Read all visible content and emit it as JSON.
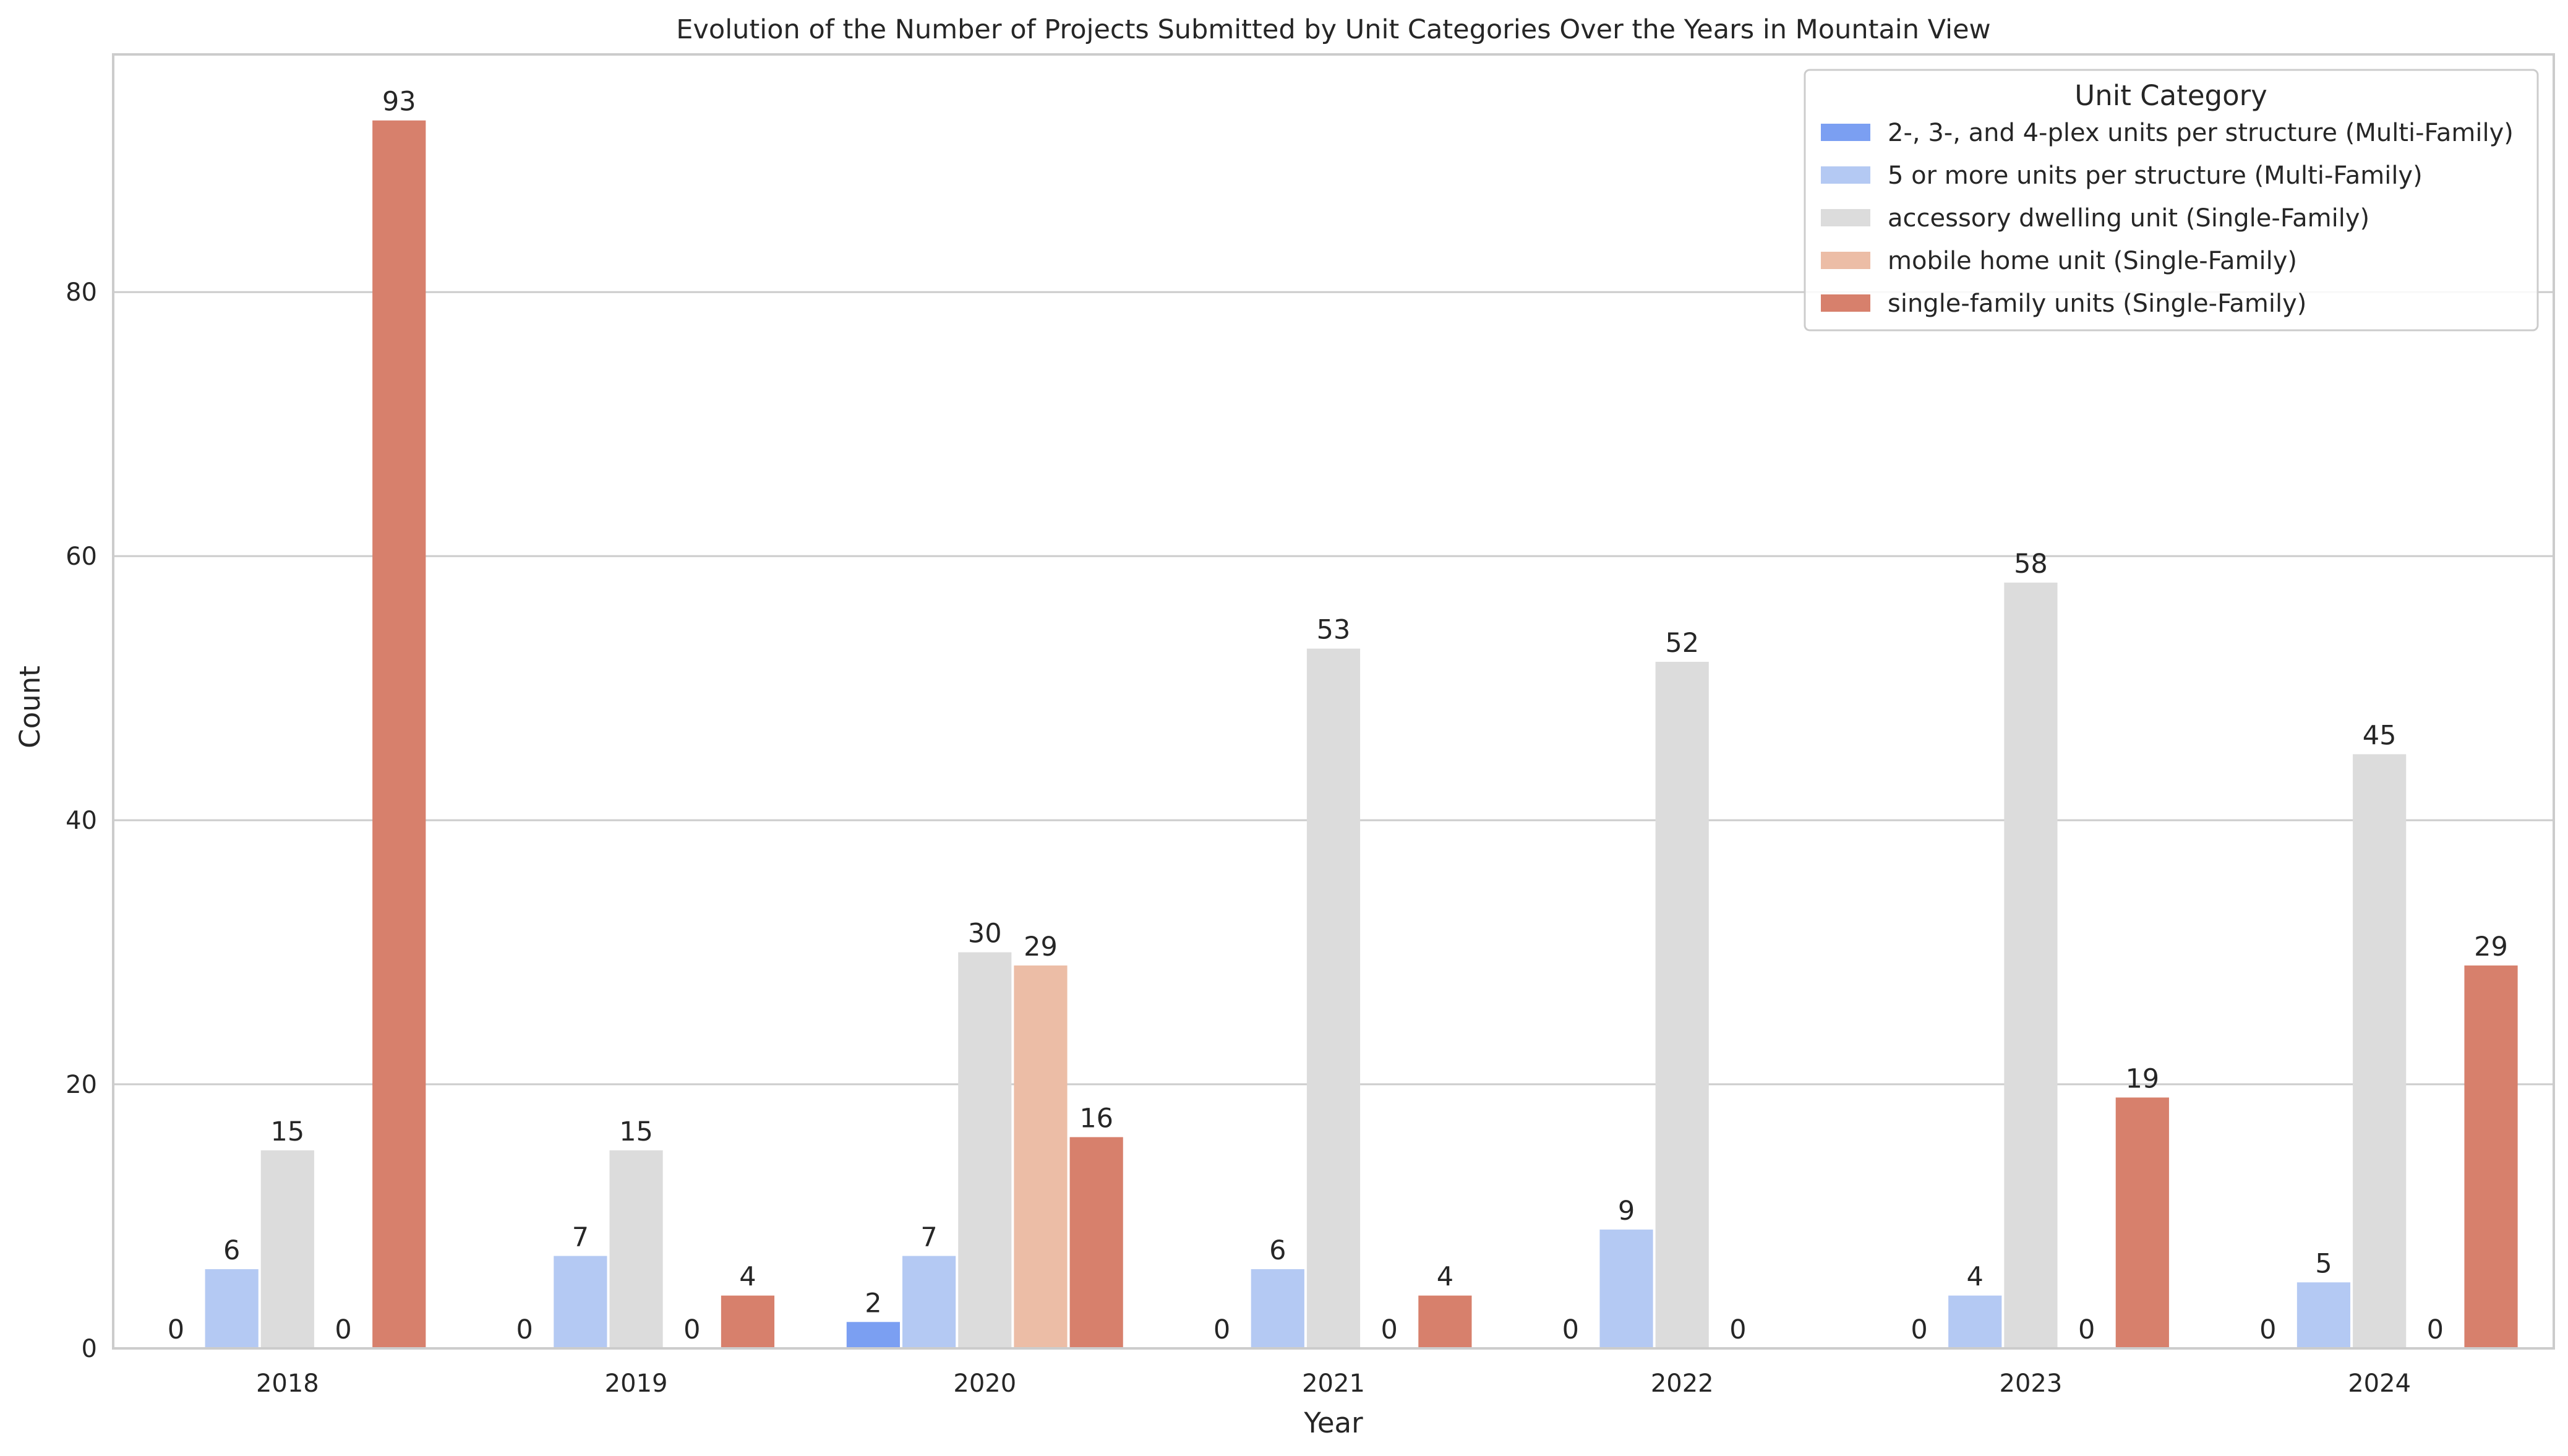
{
  "chart_data": {
    "type": "bar",
    "title": "Evolution of the Number of Projects Submitted by Unit Categories Over the Years in Mountain View",
    "xlabel": "Year",
    "ylabel": "Count",
    "categories": [
      "2018",
      "2019",
      "2020",
      "2021",
      "2022",
      "2023",
      "2024"
    ],
    "ylim": [
      0,
      98
    ],
    "yticks": [
      0,
      20,
      40,
      60,
      80
    ],
    "grid": "horizontal",
    "legend": {
      "title": "Unit Category",
      "placement": "top-right"
    },
    "series": [
      {
        "name": "2-, 3-, and 4-plex units per structure (Multi-Family)",
        "color": "#7b9ff2",
        "values": [
          0,
          0,
          2,
          0,
          0,
          0,
          0
        ],
        "labels": [
          "0",
          "0",
          "2",
          "0",
          "0",
          "0",
          "0"
        ]
      },
      {
        "name": "5 or more units per structure (Multi-Family)",
        "color": "#b4c9f3",
        "values": [
          6,
          7,
          7,
          6,
          9,
          4,
          5
        ],
        "labels": [
          "6",
          "7",
          "7",
          "6",
          "9",
          "4",
          "5"
        ]
      },
      {
        "name": "accessory dwelling unit (Single-Family)",
        "color": "#dcdcdc",
        "values": [
          15,
          15,
          30,
          53,
          52,
          58,
          45
        ],
        "labels": [
          "15",
          "15",
          "30",
          "53",
          "52",
          "58",
          "45"
        ]
      },
      {
        "name": "mobile home unit (Single-Family)",
        "color": "#ecbda6",
        "values": [
          0,
          0,
          29,
          0,
          0,
          0,
          0
        ],
        "labels": [
          "0",
          "0",
          "29",
          "0",
          "0",
          "0",
          "0"
        ]
      },
      {
        "name": "single-family units (Single-Family)",
        "color": "#d7806c",
        "values": [
          93,
          4,
          16,
          4,
          0,
          19,
          29
        ],
        "labels": [
          "93",
          "4",
          "16",
          "4",
          "",
          "19",
          "29"
        ]
      }
    ]
  }
}
